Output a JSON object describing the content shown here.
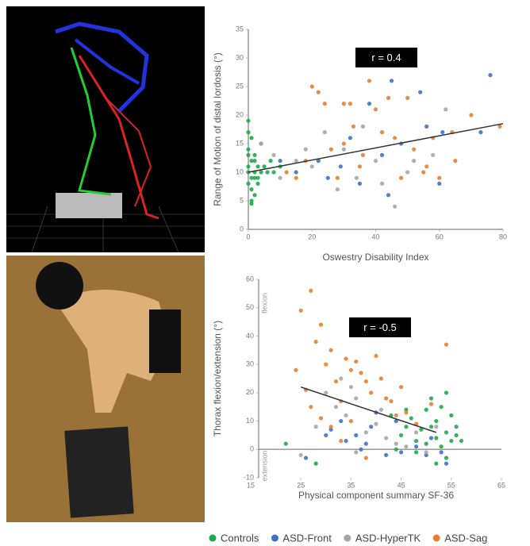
{
  "chart_data": [
    {
      "type": "scatter",
      "xlabel": "Oswestry Disability Index",
      "ylabel": "Range of Motion of distal lordosis (°)",
      "annotation": "r = 0.4",
      "xlim": [
        0,
        80
      ],
      "ylim": [
        0,
        35
      ],
      "xticks": [
        0,
        20,
        40,
        60,
        80
      ],
      "yticks": [
        0,
        5,
        10,
        15,
        20,
        25,
        30,
        35
      ],
      "trendline": {
        "x": [
          0,
          80
        ],
        "y": [
          10,
          18.5
        ]
      },
      "series": [
        {
          "name": "Controls",
          "color": "#1faa4e",
          "x": [
            0,
            0,
            1,
            0,
            1,
            0,
            2,
            1,
            0,
            1,
            2,
            1,
            0,
            3,
            2,
            4,
            3,
            5,
            2,
            6,
            8,
            10,
            4,
            1,
            3,
            7,
            0,
            2
          ],
          "y": [
            19,
            17,
            16,
            14,
            12,
            11,
            10,
            9,
            8,
            7,
            6,
            5,
            10,
            11,
            12,
            10,
            9,
            11,
            13,
            10,
            10,
            11,
            15,
            4.5,
            8,
            12,
            13,
            9
          ]
        },
        {
          "name": "ASD-Front",
          "color": "#3f72c6",
          "x": [
            38,
            45,
            54,
            61,
            76,
            73,
            32,
            25,
            22,
            42,
            48,
            35,
            56,
            60,
            15,
            10,
            29,
            44
          ],
          "y": [
            22,
            26,
            24,
            17,
            27,
            17,
            16,
            9,
            12,
            13,
            15,
            8,
            18,
            8,
            10,
            12,
            11,
            6
          ]
        },
        {
          "name": "ASD-HyperTK",
          "color": "#a6a6a6",
          "x": [
            10,
            15,
            20,
            24,
            30,
            36,
            40,
            46,
            50,
            58,
            62,
            18,
            28,
            34,
            42,
            52,
            8,
            4
          ],
          "y": [
            9,
            12,
            11,
            17,
            14,
            18,
            12,
            4,
            10,
            13,
            21,
            14,
            7,
            9,
            8,
            12,
            13,
            15
          ]
        },
        {
          "name": "ASD-Sag",
          "color": "#e67f33",
          "x": [
            20,
            22,
            24,
            30,
            32,
            38,
            44,
            50,
            40,
            26,
            30,
            42,
            36,
            48,
            55,
            58,
            64,
            70,
            79,
            65,
            60,
            28,
            18,
            12,
            35,
            46,
            52,
            15,
            33,
            56
          ],
          "y": [
            25,
            24,
            22,
            22,
            22,
            26,
            23,
            23,
            21,
            14,
            15,
            17,
            13,
            9,
            10,
            16,
            17,
            20,
            18,
            12,
            9,
            9,
            12,
            10,
            11,
            16,
            14,
            9,
            18,
            11
          ]
        }
      ]
    },
    {
      "type": "scatter",
      "xlabel": "Physical component summary SF-36",
      "ylabel": "Thorax flexion/extension (°)",
      "annotation": "r = -0.5",
      "region_labels": [
        "flexion",
        "extension"
      ],
      "xlim": [
        15,
        65
      ],
      "ylim": [
        -10,
        60
      ],
      "xticks": [
        15,
        25,
        35,
        45,
        55,
        65
      ],
      "yticks": [
        -10,
        0,
        10,
        20,
        30,
        40,
        50,
        60
      ],
      "trendline": {
        "x": [
          25,
          52
        ],
        "y": [
          22,
          6
        ]
      },
      "series": [
        {
          "color": "#1faa4e",
          "x": [
            22,
            28,
            44,
            45,
            46,
            47,
            48,
            49,
            50,
            50,
            51,
            51,
            52,
            52,
            53,
            53,
            54,
            54,
            55,
            55,
            56,
            56,
            52,
            48,
            54,
            57,
            46,
            43
          ],
          "y": [
            2,
            -5,
            0,
            5,
            8,
            11,
            3,
            7,
            2,
            14,
            8,
            18,
            4,
            10,
            1,
            15,
            6,
            20,
            3,
            12,
            5,
            8,
            -5,
            -1,
            -3,
            3,
            14,
            12
          ]
        },
        {
          "color": "#3f72c6",
          "x": [
            26,
            31,
            34,
            36,
            37,
            39,
            40,
            42,
            45,
            48,
            50,
            53,
            54,
            38,
            33,
            44,
            30,
            51
          ],
          "y": [
            -3,
            7,
            3,
            5,
            0,
            8,
            13,
            -2,
            -1,
            1,
            -2,
            -1,
            -5,
            2,
            10,
            10,
            5,
            4
          ]
        },
        {
          "color": "#a6a6a6",
          "x": [
            25,
            28,
            30,
            32,
            34,
            36,
            38,
            40,
            42,
            44,
            46,
            48,
            50,
            36,
            33,
            35,
            41,
            52
          ],
          "y": [
            -2,
            8,
            20,
            15,
            12,
            18,
            6,
            9,
            4,
            2,
            1,
            6,
            -1,
            -1,
            25,
            22,
            14,
            8
          ]
        },
        {
          "color": "#e67f33",
          "x": [
            24,
            25,
            27,
            29,
            28,
            30,
            31,
            32,
            33,
            34,
            35,
            36,
            37,
            38,
            39,
            40,
            41,
            42,
            43,
            44,
            45,
            46,
            48,
            51,
            54,
            27,
            29,
            31,
            33,
            26,
            38,
            35
          ],
          "y": [
            28,
            49,
            56,
            44,
            38,
            30,
            35,
            24,
            17,
            32,
            28,
            31,
            27,
            24,
            20,
            33,
            25,
            18,
            17,
            12,
            22,
            13,
            9,
            16,
            37,
            15,
            11,
            8,
            3,
            21,
            -3,
            10
          ]
        }
      ]
    }
  ]
}
